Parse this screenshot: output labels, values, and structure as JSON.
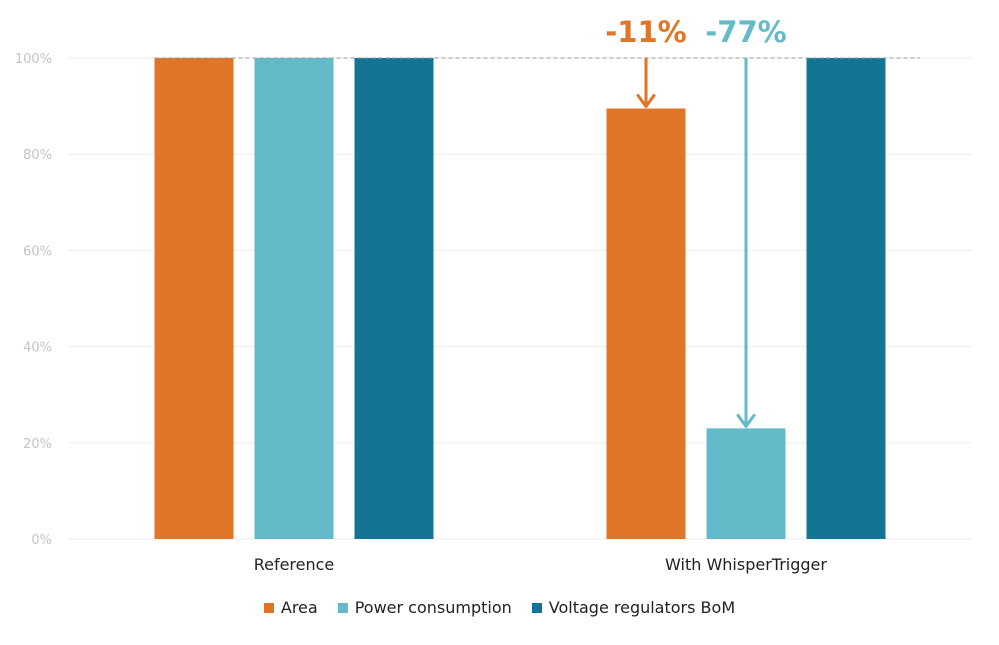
{
  "chart_data": {
    "type": "bar",
    "categories": [
      "Reference",
      "With WhisperTrigger"
    ],
    "series": [
      {
        "name": "Area",
        "values": [
          100,
          89.5
        ],
        "color": "#e07528"
      },
      {
        "name": "Power consumption",
        "values": [
          100,
          23
        ],
        "color": "#64bac8"
      },
      {
        "name": "Voltage regulators BoM",
        "values": [
          100,
          100
        ],
        "color": "#137593"
      }
    ],
    "ylim": [
      0,
      100
    ],
    "yticks": [
      0,
      20,
      40,
      60,
      80,
      100
    ],
    "ytick_labels": [
      "0%",
      "20%",
      "40%",
      "60%",
      "80%",
      "100%"
    ],
    "reference_line": 100,
    "grid": true,
    "legend_position": "bottom",
    "annotations": [
      {
        "text": "-11%",
        "series": "Area",
        "category": "With WhisperTrigger",
        "from": 100,
        "to": 89.5,
        "color": "#e07528"
      },
      {
        "text": "-77%",
        "series": "Power consumption",
        "category": "With WhisperTrigger",
        "from": 100,
        "to": 23,
        "color": "#64bac8"
      }
    ]
  }
}
